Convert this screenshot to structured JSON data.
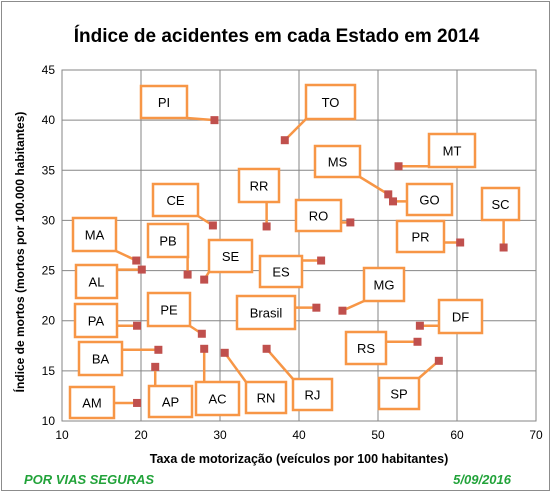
{
  "chart_data": {
    "type": "scatter",
    "title": "Índice de acidentes  em cada Estado  em 2014",
    "xlabel": "Taxa de motorização (veículos por 100 habitantes)",
    "ylabel": "Índice de mortos (mortos por 100.000 habitantes)",
    "xlim": [
      10,
      70
    ],
    "ylim": [
      10,
      45
    ],
    "xticks": [
      10,
      20,
      30,
      40,
      50,
      60,
      70
    ],
    "yticks": [
      10,
      15,
      20,
      25,
      30,
      35,
      40,
      45
    ],
    "grid": true,
    "marker_color": "#c0504d",
    "callout_border_color": "#f79646",
    "points": [
      {
        "label": "PI",
        "x": 29.3,
        "y": 40.0
      },
      {
        "label": "TO",
        "x": 38.2,
        "y": 38.0
      },
      {
        "label": "MT",
        "x": 52.6,
        "y": 35.4
      },
      {
        "label": "MS",
        "x": 51.3,
        "y": 32.6
      },
      {
        "label": "GO",
        "x": 51.9,
        "y": 31.9
      },
      {
        "label": "SC",
        "x": 65.9,
        "y": 27.3
      },
      {
        "label": "CE",
        "x": 29.1,
        "y": 29.5
      },
      {
        "label": "RR",
        "x": 35.9,
        "y": 29.4
      },
      {
        "label": "RO",
        "x": 46.5,
        "y": 29.8
      },
      {
        "label": "PR",
        "x": 60.4,
        "y": 27.8
      },
      {
        "label": "MA",
        "x": 19.4,
        "y": 26.0
      },
      {
        "label": "AL",
        "x": 20.1,
        "y": 25.1
      },
      {
        "label": "PB",
        "x": 25.9,
        "y": 24.6
      },
      {
        "label": "SE",
        "x": 28.0,
        "y": 24.1
      },
      {
        "label": "ES",
        "x": 42.8,
        "y": 26.0
      },
      {
        "label": "MG",
        "x": 45.5,
        "y": 21.0
      },
      {
        "label": "Brasil",
        "x": 42.2,
        "y": 21.3
      },
      {
        "label": "DF",
        "x": 55.3,
        "y": 19.5
      },
      {
        "label": "PA",
        "x": 19.5,
        "y": 19.5
      },
      {
        "label": "PE",
        "x": 27.7,
        "y": 18.7
      },
      {
        "label": "RS",
        "x": 55.0,
        "y": 17.9
      },
      {
        "label": "BA",
        "x": 22.2,
        "y": 17.1
      },
      {
        "label": "AC",
        "x": 28.0,
        "y": 17.2
      },
      {
        "label": "RN",
        "x": 30.6,
        "y": 16.8
      },
      {
        "label": "RJ",
        "x": 35.9,
        "y": 17.2
      },
      {
        "label": "SP",
        "x": 57.7,
        "y": 16.0
      },
      {
        "label": "AP",
        "x": 21.8,
        "y": 15.4
      },
      {
        "label": "AM",
        "x": 19.5,
        "y": 11.8
      }
    ]
  },
  "footer": {
    "source": "POR VIAS SEGURAS",
    "date": "5/09/2016",
    "color": "#22a33a"
  }
}
